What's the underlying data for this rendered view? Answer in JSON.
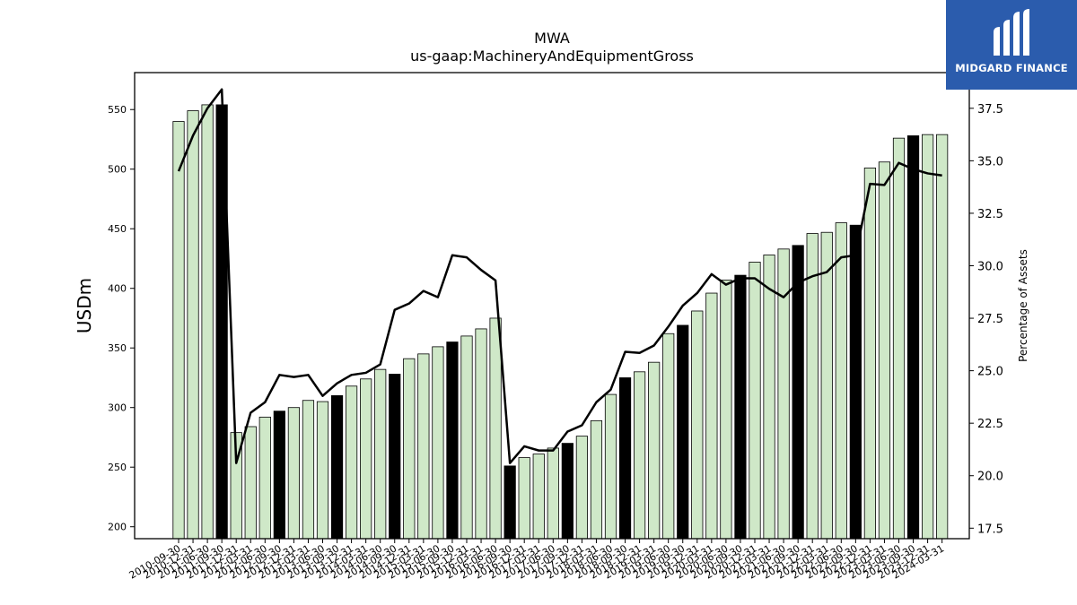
{
  "brand": {
    "name": "MIDGARD FINANCE",
    "bg_color": "#2b5cad",
    "icon": "midgard-m-logo-icon"
  },
  "colors": {
    "bar_regular": "#cfe8c8",
    "bar_highlight": "#000000",
    "line": "#000000"
  },
  "chart_data": {
    "type": "bar",
    "title": "MWA",
    "subtitle": "us-gaap:MachineryAndEquipmentGross",
    "ylabel": "USDm",
    "y2label": "Percentage of Assets",
    "ylim": [
      190,
      581
    ],
    "y2lim": [
      17,
      39.2
    ],
    "yticks": [
      200,
      250,
      300,
      350,
      400,
      450,
      500,
      550
    ],
    "y2ticks": [
      17.5,
      20.0,
      22.5,
      25.0,
      27.5,
      30.0,
      32.5,
      35.0,
      37.5
    ],
    "y2tick_labels": [
      "17.5",
      "20.0",
      "22.5",
      "25.0",
      "27.5",
      "30.0",
      "32.5",
      "35.0",
      "37.5"
    ],
    "categories": [
      "2010-09-30",
      "2010-12-31",
      "2011-06-30",
      "2011-09-30",
      "2011-12-31",
      "2012-03-31",
      "2012-06-30",
      "2012-09-30",
      "2012-12-31",
      "2013-03-31",
      "2013-06-30",
      "2013-09-30",
      "2013-12-31",
      "2014-03-31",
      "2014-06-30",
      "2014-09-30",
      "2014-12-31",
      "2015-03-31",
      "2015-06-30",
      "2015-09-30",
      "2015-12-31",
      "2016-03-31",
      "2016-06-30",
      "2016-09-30",
      "2016-12-31",
      "2017-03-31",
      "2017-06-30",
      "2017-09-30",
      "2017-12-31",
      "2018-03-31",
      "2018-06-30",
      "2018-09-30",
      "2018-12-31",
      "2019-03-31",
      "2019-06-30",
      "2019-09-30",
      "2019-12-31",
      "2020-03-31",
      "2020-06-30",
      "2020-09-30",
      "2020-12-31",
      "2021-03-31",
      "2021-06-30",
      "2021-09-30",
      "2021-12-31",
      "2022-03-31",
      "2022-06-30",
      "2022-09-30",
      "2022-12-31",
      "2023-03-31",
      "2023-06-30",
      "2023-09-30",
      "2023-12-31",
      "2024-03-31"
    ],
    "series": [
      {
        "type": "bar",
        "values": [
          540,
          549,
          554,
          554,
          279,
          284,
          292,
          297,
          300,
          306,
          305,
          310,
          318,
          324,
          332,
          328,
          341,
          345,
          351,
          355,
          360,
          366,
          375,
          251,
          258,
          261,
          266,
          270,
          276,
          289,
          311,
          325,
          330,
          338,
          362,
          369,
          381,
          396,
          407,
          411,
          422,
          428,
          433,
          436,
          446,
          447,
          455,
          453,
          501,
          506,
          526,
          528,
          529,
          529
        ],
        "highlight": [
          false,
          false,
          false,
          true,
          false,
          false,
          false,
          true,
          false,
          false,
          false,
          true,
          false,
          false,
          false,
          true,
          false,
          false,
          false,
          true,
          false,
          false,
          false,
          true,
          false,
          false,
          false,
          true,
          false,
          false,
          false,
          true,
          false,
          false,
          false,
          true,
          false,
          false,
          false,
          true,
          false,
          false,
          false,
          true,
          false,
          false,
          false,
          true,
          false,
          false,
          false,
          true,
          false,
          false
        ]
      },
      {
        "type": "line",
        "axis": "right",
        "values": [
          34.5,
          36.2,
          37.5,
          38.4,
          20.6,
          23.0,
          23.5,
          24.8,
          24.7,
          24.8,
          23.8,
          24.4,
          24.8,
          24.9,
          25.3,
          27.9,
          28.2,
          28.8,
          28.5,
          30.5,
          30.4,
          29.8,
          29.3,
          20.6,
          21.4,
          21.2,
          21.2,
          22.1,
          22.4,
          23.5,
          24.1,
          25.9,
          25.85,
          26.2,
          27.1,
          28.1,
          28.7,
          29.6,
          29.1,
          29.4,
          29.4,
          28.9,
          28.5,
          29.2,
          29.5,
          29.7,
          30.4,
          30.5,
          33.9,
          33.85,
          34.9,
          34.6,
          34.4,
          34.3
        ]
      }
    ],
    "grid": false,
    "legend": "none"
  }
}
